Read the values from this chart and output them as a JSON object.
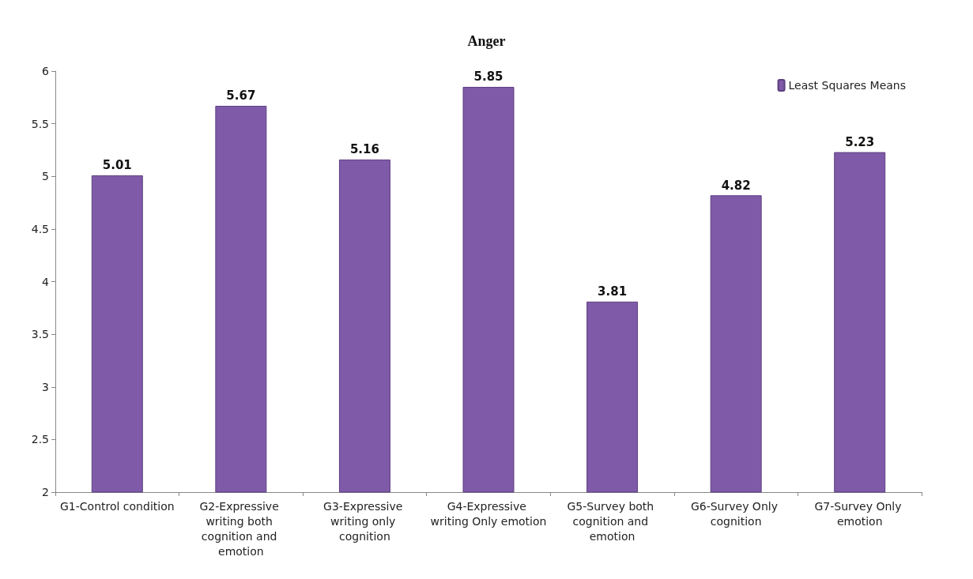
{
  "chart_data": {
    "type": "bar",
    "title": "Anger",
    "categories": [
      "G1-Control condition",
      "G2-Expressive writing both cognition and emotion",
      "G3-Expressive writing only cognition",
      "G4-Expressive writing Only emotion",
      "G5-Survey both cognition and emotion",
      "G6-Survey Only cognition",
      "G7-Survey Only emotion"
    ],
    "series": [
      {
        "name": "Least Squares Means",
        "color": "#7f5aa8",
        "values": [
          5.01,
          5.67,
          5.16,
          5.85,
          3.81,
          4.82,
          5.23
        ]
      }
    ],
    "ylim": [
      2,
      6
    ],
    "yticks": [
      2,
      2.5,
      3,
      3.5,
      4,
      4.5,
      5,
      5.5,
      6
    ],
    "data_labels": true,
    "legend": "top right",
    "grid": false
  }
}
